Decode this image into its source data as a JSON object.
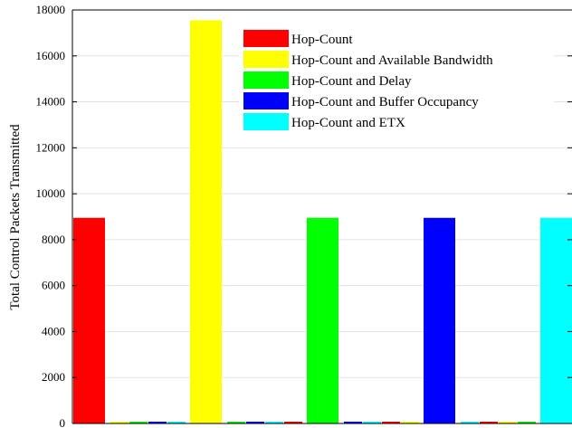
{
  "chart_data": {
    "type": "bar",
    "ylabel": "Total Control Packets Transmitted",
    "xlabel": "",
    "ylim": [
      0,
      18000
    ],
    "yticks": [
      0,
      2000,
      4000,
      6000,
      8000,
      10000,
      12000,
      14000,
      16000,
      18000
    ],
    "grid": true,
    "legend_position": "top-right",
    "series": [
      {
        "name": "Hop-Count",
        "color": "#ff0000",
        "value": 8950
      },
      {
        "name": "Hop-Count and Available Bandwidth",
        "color": "#ffff00",
        "value": 17550
      },
      {
        "name": "Hop-Count and Delay",
        "color": "#00ff00",
        "value": 8950
      },
      {
        "name": "Hop-Count and Buffer Occupancy",
        "color": "#0000ff",
        "value": 8950
      },
      {
        "name": "Hop-Count and ETX",
        "color": "#00ffff",
        "value": 8950
      }
    ]
  }
}
